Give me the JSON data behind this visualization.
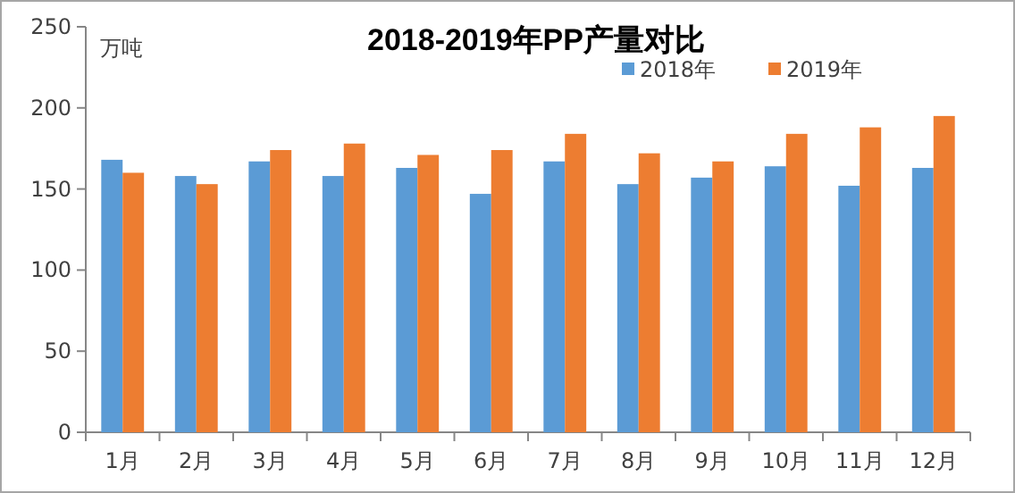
{
  "chart_data": {
    "type": "bar",
    "title": "2018-2019年PP产量对比",
    "ylabel": "万吨",
    "categories": [
      "1月",
      "2月",
      "3月",
      "4月",
      "5月",
      "6月",
      "7月",
      "8月",
      "9月",
      "10月",
      "11月",
      "12月"
    ],
    "series": [
      {
        "name": "2018年",
        "color": "#5b9bd5",
        "values": [
          168,
          158,
          167,
          158,
          163,
          147,
          167,
          153,
          157,
          164,
          152,
          163
        ]
      },
      {
        "name": "2019年",
        "color": "#ed7d31",
        "values": [
          160,
          153,
          174,
          178,
          171,
          174,
          184,
          172,
          167,
          184,
          188,
          195
        ]
      }
    ],
    "ylim": [
      0,
      250
    ],
    "yticks": [
      0,
      50,
      100,
      150,
      200,
      250
    ],
    "grid": false,
    "legend": "top right"
  }
}
